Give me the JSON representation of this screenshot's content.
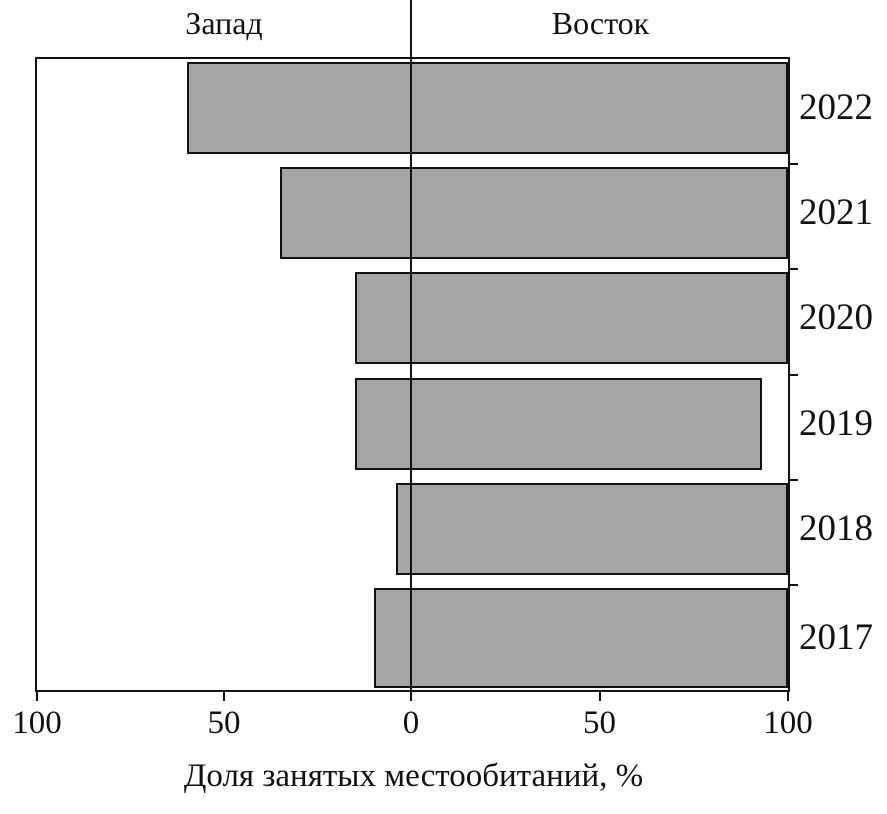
{
  "chart_data": {
    "type": "bar",
    "variant": "diverging-horizontal",
    "categories": [
      "2022",
      "2021",
      "2020",
      "2019",
      "2018",
      "2017"
    ],
    "series": [
      {
        "name": "Запад",
        "side": "west",
        "values": [
          60,
          35,
          15,
          15,
          4,
          10
        ]
      },
      {
        "name": "Восток",
        "side": "east",
        "values": [
          100,
          100,
          100,
          93,
          100,
          100
        ]
      }
    ],
    "x_ticks": [
      "100",
      "50",
      "0",
      "50",
      "100"
    ],
    "xlabel": "Доля занятых местообитаний, %",
    "axis_range_each_side": [
      0,
      100
    ],
    "bar_color": "#a5a5a5",
    "bar_border_color": "#111111",
    "axis_color": "#111111",
    "grid": false,
    "legend_position": "none"
  }
}
